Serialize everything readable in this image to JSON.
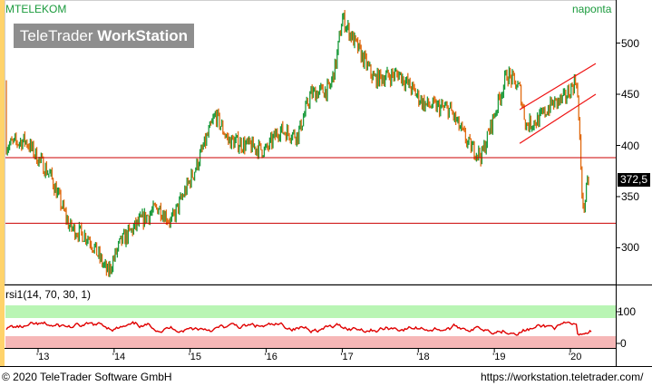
{
  "header": {
    "symbol": "MTELEKOM",
    "interval": "naponta"
  },
  "watermark": {
    "brand_light": "TeleTrader ",
    "brand_bold": "WorkStation"
  },
  "last_price": "372,5",
  "rsi": {
    "label": "rsi1(14, 70, 30, 1)",
    "ticks": [
      "100",
      "0"
    ]
  },
  "footer": {
    "copyright": "© 2020 TeleTrader Software GmbH",
    "url": "https://workstation.teletrader.com/"
  },
  "colors": {
    "up": "#1a9a3c",
    "down": "#e06a10",
    "rsi_line": "#e00000",
    "overbought_band": "#b9f5b4",
    "oversold_band": "#f6b7b7",
    "support_line": "#cc0000",
    "channel": "#ee1111"
  },
  "chart_data": {
    "type": "line",
    "title": "MTELEKOM",
    "ylim": [
      265,
      535
    ],
    "y_ticks": [
      "300",
      "350",
      "400",
      "450",
      "500"
    ],
    "x_ticks": [
      "'13",
      "'14",
      "'15",
      "'16",
      "'17",
      "'18",
      "'19",
      "'20"
    ],
    "price_anchors": {
      "x": [
        "2012-06",
        "2012-08",
        "2012-11",
        "2013-03",
        "2013-06",
        "2013-09",
        "2013-12",
        "2014-02",
        "2014-05",
        "2014-08",
        "2014-10",
        "2015-02",
        "2015-05",
        "2015-07",
        "2015-10",
        "2016-01",
        "2016-03",
        "2016-06",
        "2016-08",
        "2016-11",
        "2016-12",
        "2017-01",
        "2017-03",
        "2017-06",
        "2017-10",
        "2018-02",
        "2018-06",
        "2018-09",
        "2018-11",
        "2019-01",
        "2019-03",
        "2019-05",
        "2019-06",
        "2019-08",
        "2019-10",
        "2019-12",
        "2020-02",
        "2020-03",
        "2020-04"
      ],
      "y": [
        460,
        400,
        405,
        370,
        320,
        310,
        275,
        305,
        325,
        340,
        325,
        380,
        430,
        405,
        400,
        395,
        415,
        410,
        450,
        455,
        480,
        525,
        500,
        465,
        470,
        440,
        435,
        400,
        390,
        430,
        470,
        455,
        420,
        425,
        440,
        445,
        465,
        335,
        372.5
      ]
    },
    "horizontal_lines": [
      388,
      324
    ],
    "channel": {
      "upper": [
        [
          "2019-05",
          435
        ],
        [
          "2020-05",
          480
        ]
      ],
      "lower": [
        [
          "2019-05",
          402
        ],
        [
          "2020-05",
          450
        ]
      ]
    },
    "rsi_series": {
      "ylim": [
        0,
        100
      ],
      "overbought": 70,
      "oversold": 30,
      "mean": 50
    }
  }
}
